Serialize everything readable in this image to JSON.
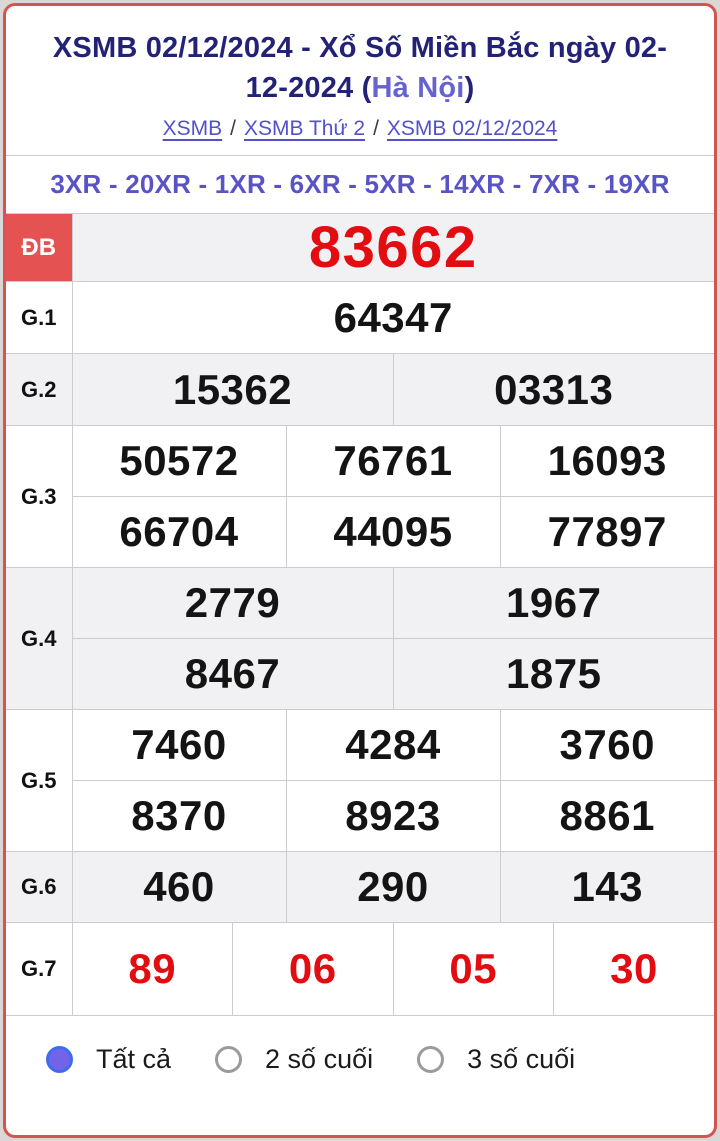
{
  "header": {
    "title_part1": "XSMB 02/12/2024 - Xổ Số Miền Bắc ngày 02-",
    "title_part2": "12-2024 (",
    "title_city": "Hà Nội",
    "title_part3": ")",
    "breadcrumb": [
      {
        "label": "XSMB"
      },
      {
        "label": "XSMB Thứ 2"
      },
      {
        "label": "XSMB 02/12/2024"
      }
    ],
    "separator": "/",
    "codes": "3XR - 20XR - 1XR - 6XR - 5XR - 14XR - 7XR - 19XR"
  },
  "results": {
    "db": {
      "label": "ĐB",
      "value": "83662"
    },
    "g1": {
      "label": "G.1",
      "value": "64347"
    },
    "g2": {
      "label": "G.2",
      "values": [
        "15362",
        "03313"
      ]
    },
    "g3": {
      "label": "G.3",
      "row1": [
        "50572",
        "76761",
        "16093"
      ],
      "row2": [
        "66704",
        "44095",
        "77897"
      ]
    },
    "g4": {
      "label": "G.4",
      "row1": [
        "2779",
        "1967"
      ],
      "row2": [
        "8467",
        "1875"
      ]
    },
    "g5": {
      "label": "G.5",
      "row1": [
        "7460",
        "4284",
        "3760"
      ],
      "row2": [
        "8370",
        "8923",
        "8861"
      ]
    },
    "g6": {
      "label": "G.6",
      "values": [
        "460",
        "290",
        "143"
      ]
    },
    "g7": {
      "label": "G.7",
      "values": [
        "89",
        "06",
        "05",
        "30"
      ]
    }
  },
  "filters": {
    "options": [
      {
        "label": "Tất cả",
        "selected": true
      },
      {
        "label": "2 số cuối",
        "selected": false
      },
      {
        "label": "3 số cuối",
        "selected": false
      }
    ]
  },
  "colors": {
    "card_border": "#d25551",
    "db_label_bg": "#e45352",
    "red_number": "#e20c11",
    "title_navy": "#232277",
    "link_purple": "#5251c8",
    "codes_purple": "#5953c5",
    "stripe_gray": "#f1f1f3",
    "radio_selected": "#7264e8"
  }
}
